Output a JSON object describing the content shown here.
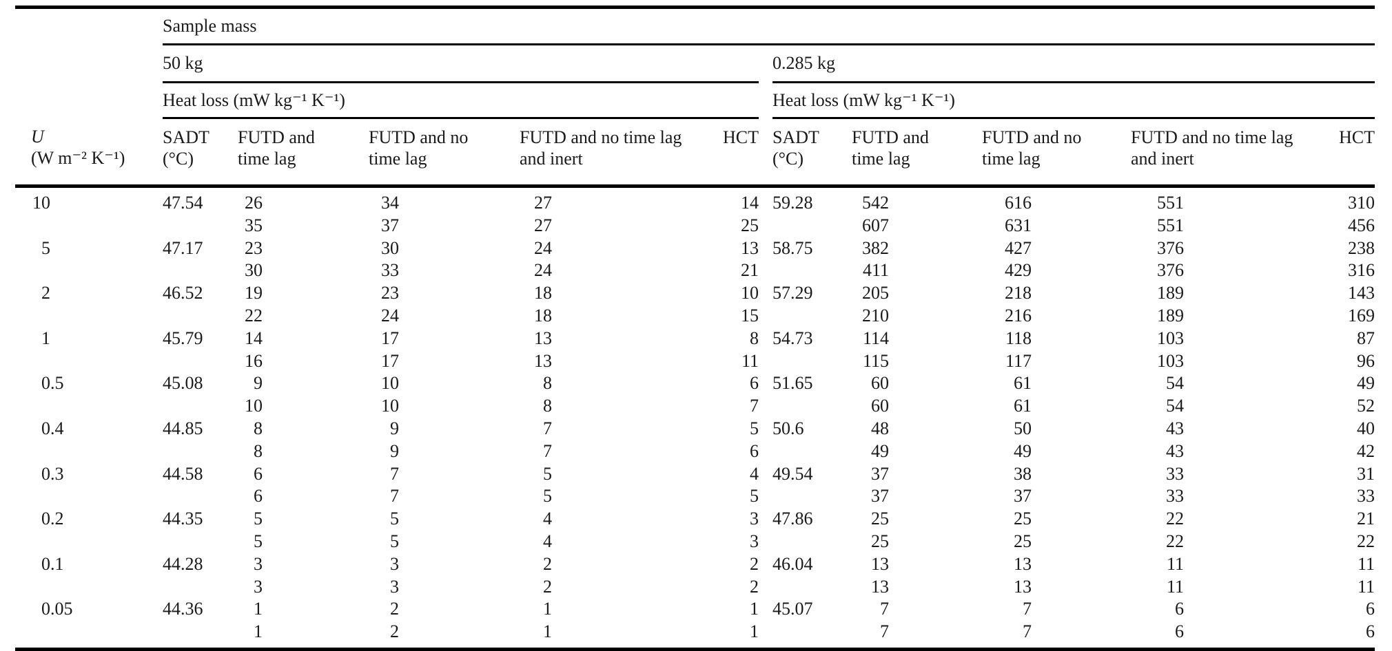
{
  "table": {
    "sample_mass_header": "Sample mass",
    "groups": [
      {
        "mass": "50 kg",
        "heat_loss": "Heat loss (mW kg⁻¹ K⁻¹)"
      },
      {
        "mass": "0.285 kg",
        "heat_loss": "Heat loss (mW kg⁻¹ K⁻¹)"
      }
    ],
    "columns": {
      "u": {
        "symbol": "U",
        "unit": "(W m⁻² K⁻¹)"
      },
      "sadt": {
        "label": "SADT",
        "unit": "(°C)"
      },
      "futd_time_lag": {
        "line1": "FUTD and",
        "line2": "time lag"
      },
      "futd_no_time_lag": {
        "line1": "FUTD and no",
        "line2": "time lag"
      },
      "futd_no_time_lag_inert": {
        "line1": "FUTD and no time lag",
        "line2": "and inert"
      },
      "hct": "HCT"
    },
    "rows": [
      {
        "u": "10",
        "left": {
          "sadt": "47.54",
          "futd_time_lag": [
            "26",
            "35"
          ],
          "futd_no_time_lag": [
            "34",
            "37"
          ],
          "futd_no_time_lag_inert": [
            "27",
            "27"
          ],
          "hct": [
            "14",
            "25"
          ]
        },
        "right": {
          "sadt": "59.28",
          "futd_time_lag": [
            "542",
            "607"
          ],
          "futd_no_time_lag": [
            "616",
            "631"
          ],
          "futd_no_time_lag_inert": [
            "551",
            "551"
          ],
          "hct": [
            "310",
            "456"
          ]
        }
      },
      {
        "u": "5",
        "left": {
          "sadt": "47.17",
          "futd_time_lag": [
            "23",
            "30"
          ],
          "futd_no_time_lag": [
            "30",
            "33"
          ],
          "futd_no_time_lag_inert": [
            "24",
            "24"
          ],
          "hct": [
            "13",
            "21"
          ]
        },
        "right": {
          "sadt": "58.75",
          "futd_time_lag": [
            "382",
            "411"
          ],
          "futd_no_time_lag": [
            "427",
            "429"
          ],
          "futd_no_time_lag_inert": [
            "376",
            "376"
          ],
          "hct": [
            "238",
            "316"
          ]
        }
      },
      {
        "u": "2",
        "left": {
          "sadt": "46.52",
          "futd_time_lag": [
            "19",
            "22"
          ],
          "futd_no_time_lag": [
            "23",
            "24"
          ],
          "futd_no_time_lag_inert": [
            "18",
            "18"
          ],
          "hct": [
            "10",
            "15"
          ]
        },
        "right": {
          "sadt": "57.29",
          "futd_time_lag": [
            "205",
            "210"
          ],
          "futd_no_time_lag": [
            "218",
            "216"
          ],
          "futd_no_time_lag_inert": [
            "189",
            "189"
          ],
          "hct": [
            "143",
            "169"
          ]
        }
      },
      {
        "u": "1",
        "left": {
          "sadt": "45.79",
          "futd_time_lag": [
            "14",
            "16"
          ],
          "futd_no_time_lag": [
            "17",
            "17"
          ],
          "futd_no_time_lag_inert": [
            "13",
            "13"
          ],
          "hct": [
            "8",
            "11"
          ]
        },
        "right": {
          "sadt": "54.73",
          "futd_time_lag": [
            "114",
            "115"
          ],
          "futd_no_time_lag": [
            "118",
            "117"
          ],
          "futd_no_time_lag_inert": [
            "103",
            "103"
          ],
          "hct": [
            "87",
            "96"
          ]
        }
      },
      {
        "u": "0.5",
        "left": {
          "sadt": "45.08",
          "futd_time_lag": [
            "9",
            "10"
          ],
          "futd_no_time_lag": [
            "10",
            "10"
          ],
          "futd_no_time_lag_inert": [
            "8",
            "8"
          ],
          "hct": [
            "6",
            "7"
          ]
        },
        "right": {
          "sadt": "51.65",
          "futd_time_lag": [
            "60",
            "60"
          ],
          "futd_no_time_lag": [
            "61",
            "61"
          ],
          "futd_no_time_lag_inert": [
            "54",
            "54"
          ],
          "hct": [
            "49",
            "52"
          ]
        }
      },
      {
        "u": "0.4",
        "left": {
          "sadt": "44.85",
          "futd_time_lag": [
            "8",
            "8"
          ],
          "futd_no_time_lag": [
            "9",
            "9"
          ],
          "futd_no_time_lag_inert": [
            "7",
            "7"
          ],
          "hct": [
            "5",
            "6"
          ]
        },
        "right": {
          "sadt": "50.6",
          "futd_time_lag": [
            "48",
            "49"
          ],
          "futd_no_time_lag": [
            "50",
            "49"
          ],
          "futd_no_time_lag_inert": [
            "43",
            "43"
          ],
          "hct": [
            "40",
            "42"
          ]
        }
      },
      {
        "u": "0.3",
        "left": {
          "sadt": "44.58",
          "futd_time_lag": [
            "6",
            "6"
          ],
          "futd_no_time_lag": [
            "7",
            "7"
          ],
          "futd_no_time_lag_inert": [
            "5",
            "5"
          ],
          "hct": [
            "4",
            "5"
          ]
        },
        "right": {
          "sadt": "49.54",
          "futd_time_lag": [
            "37",
            "37"
          ],
          "futd_no_time_lag": [
            "38",
            "37"
          ],
          "futd_no_time_lag_inert": [
            "33",
            "33"
          ],
          "hct": [
            "31",
            "33"
          ]
        }
      },
      {
        "u": "0.2",
        "left": {
          "sadt": "44.35",
          "futd_time_lag": [
            "5",
            "5"
          ],
          "futd_no_time_lag": [
            "5",
            "5"
          ],
          "futd_no_time_lag_inert": [
            "4",
            "4"
          ],
          "hct": [
            "3",
            "3"
          ]
        },
        "right": {
          "sadt": "47.86",
          "futd_time_lag": [
            "25",
            "25"
          ],
          "futd_no_time_lag": [
            "25",
            "25"
          ],
          "futd_no_time_lag_inert": [
            "22",
            "22"
          ],
          "hct": [
            "21",
            "22"
          ]
        }
      },
      {
        "u": "0.1",
        "left": {
          "sadt": "44.28",
          "futd_time_lag": [
            "3",
            "3"
          ],
          "futd_no_time_lag": [
            "3",
            "3"
          ],
          "futd_no_time_lag_inert": [
            "2",
            "2"
          ],
          "hct": [
            "2",
            "2"
          ]
        },
        "right": {
          "sadt": "46.04",
          "futd_time_lag": [
            "13",
            "13"
          ],
          "futd_no_time_lag": [
            "13",
            "13"
          ],
          "futd_no_time_lag_inert": [
            "11",
            "11"
          ],
          "hct": [
            "11",
            "11"
          ]
        }
      },
      {
        "u": "0.05",
        "left": {
          "sadt": "44.36",
          "futd_time_lag": [
            "1",
            "1"
          ],
          "futd_no_time_lag": [
            "2",
            "2"
          ],
          "futd_no_time_lag_inert": [
            "1",
            "1"
          ],
          "hct": [
            "1",
            "1"
          ]
        },
        "right": {
          "sadt": "45.07",
          "futd_time_lag": [
            "7",
            "7"
          ],
          "futd_no_time_lag": [
            "7",
            "7"
          ],
          "futd_no_time_lag_inert": [
            "6",
            "6"
          ],
          "hct": [
            "6",
            "6"
          ]
        }
      }
    ]
  }
}
